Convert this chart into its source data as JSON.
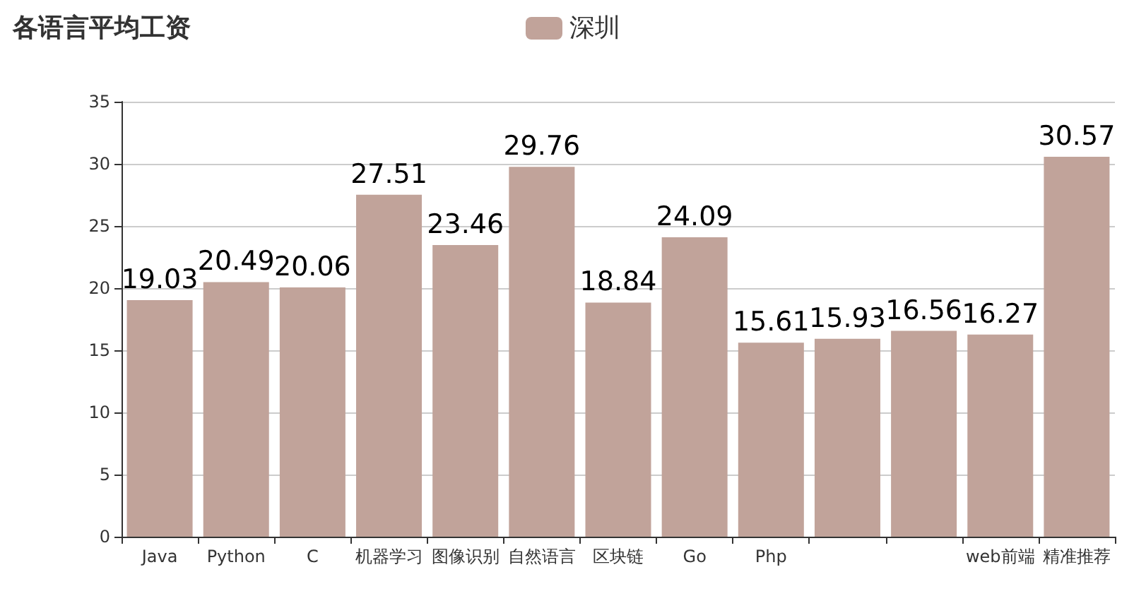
{
  "chart_data": {
    "type": "bar",
    "title": "各语言平均工资",
    "categories": [
      "Java",
      "Python",
      "C",
      "机器学习",
      "图像识别",
      "自然语言",
      "区块链",
      "Go",
      "Php",
      null,
      null,
      "web前端",
      "精准推荐"
    ],
    "series": [
      {
        "name": "深圳",
        "color": "#c1a39a",
        "values": [
          19.03,
          20.49,
          20.06,
          27.51,
          23.46,
          29.76,
          18.84,
          24.09,
          15.61,
          15.93,
          16.56,
          16.27,
          30.57
        ]
      }
    ],
    "ylim": [
      0,
      35
    ],
    "yticks": [
      0,
      5,
      10,
      15,
      20,
      25,
      30,
      35
    ],
    "grid": "y",
    "legend": "top",
    "data_labels": true
  }
}
